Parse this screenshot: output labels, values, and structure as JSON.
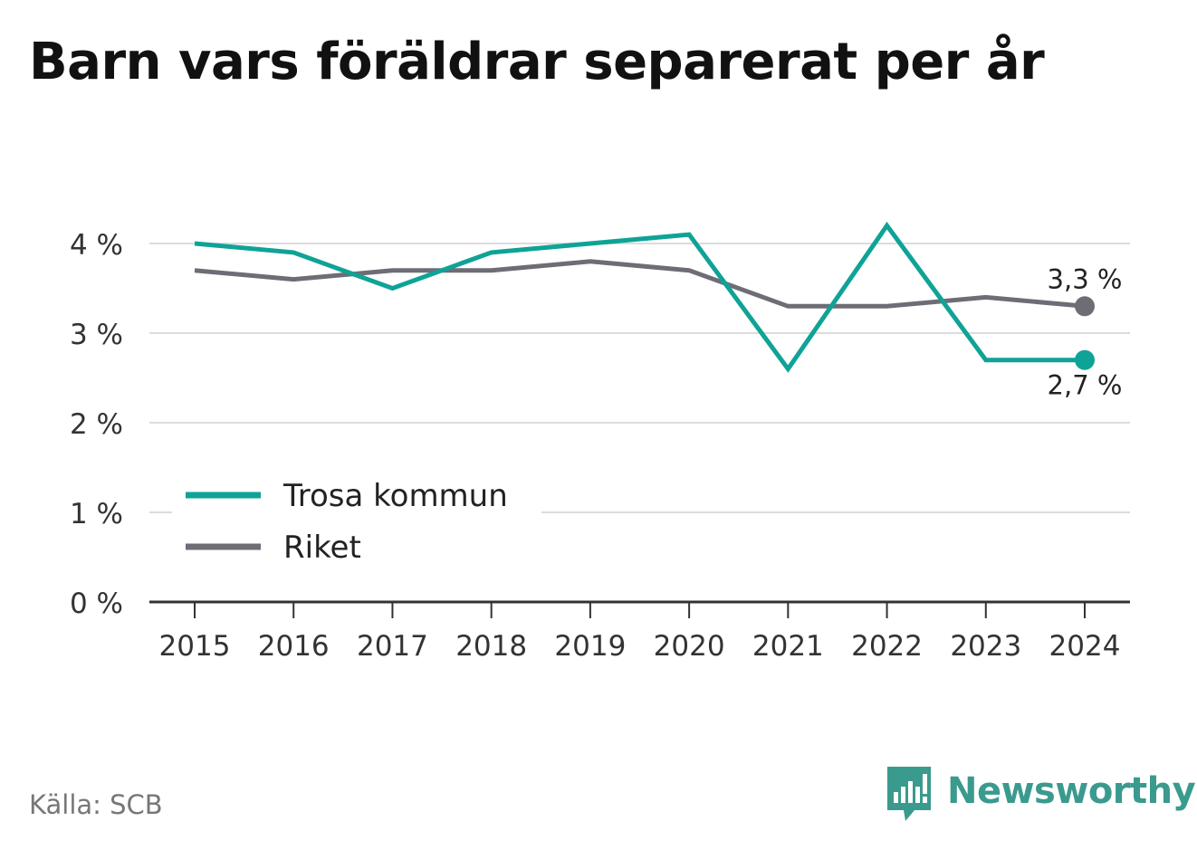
{
  "title": "Barn vars föräldrar separerat per år",
  "source": "Källa: SCB",
  "brand": {
    "name": "Newsworthy",
    "logo_icon": "bar-chart-speech-bubble-icon",
    "color": "#3a9a8d"
  },
  "chart_data": {
    "type": "line",
    "title": "Barn vars föräldrar separerat per år",
    "x": [
      "2015",
      "2016",
      "2017",
      "2018",
      "2019",
      "2020",
      "2021",
      "2022",
      "2023",
      "2024"
    ],
    "y_ticks": [
      0,
      1,
      2,
      3,
      4
    ],
    "y_tick_labels": [
      "0 %",
      "1 %",
      "2 %",
      "3 %",
      "4 %"
    ],
    "ylim": [
      0,
      4
    ],
    "y_unit": "%",
    "grid": true,
    "legend_position": "bottom-left",
    "series": [
      {
        "name": "Trosa kommun",
        "color": "#0fa396",
        "values": [
          4.0,
          3.9,
          3.5,
          3.9,
          4.0,
          4.1,
          2.6,
          4.2,
          2.7,
          2.7
        ],
        "end_label": "2,7 %"
      },
      {
        "name": "Riket",
        "color": "#6e6d75",
        "values": [
          3.7,
          3.6,
          3.7,
          3.7,
          3.8,
          3.7,
          3.3,
          3.3,
          3.4,
          3.3
        ],
        "end_label": "3,3 %"
      }
    ]
  }
}
